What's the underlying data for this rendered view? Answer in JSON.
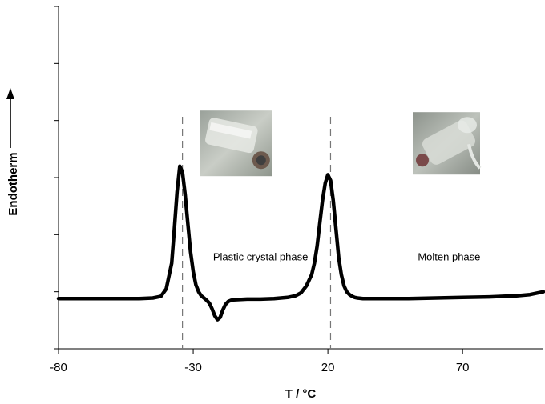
{
  "chart_data": {
    "type": "line",
    "title": "",
    "xlabel": "T / °C",
    "ylabel": "Endotherm",
    "xlim": [
      -80,
      100
    ],
    "ylim": [
      0,
      6
    ],
    "x_ticks": [
      -80,
      -30,
      20,
      70
    ],
    "x_tick_labels": [
      "-80",
      "-30",
      "20",
      "70"
    ],
    "y_ticks": [
      0,
      1,
      2,
      3,
      4,
      5,
      6
    ],
    "grid": false,
    "legend": "none",
    "series": [
      {
        "x": [
          -80,
          -60,
          -50,
          -45,
          -42,
          -40,
          -38,
          -37,
          -36,
          -35,
          -34,
          -33,
          -32,
          -31,
          -30,
          -29,
          -28,
          -27,
          -26,
          -25,
          -24,
          -23,
          -22,
          -21,
          -20,
          -19,
          -18,
          -17,
          -16,
          -15,
          -10,
          -5,
          0,
          5,
          8,
          10,
          12,
          14,
          15,
          16,
          17,
          18,
          19,
          20,
          21,
          22,
          23,
          24,
          25,
          26,
          27,
          28,
          29,
          30,
          31,
          33,
          36,
          40,
          50,
          60,
          70,
          80,
          90,
          95,
          100
        ],
        "values": [
          0.88,
          0.88,
          0.88,
          0.89,
          0.92,
          1.05,
          1.5,
          2.1,
          2.75,
          3.2,
          3.1,
          2.7,
          2.2,
          1.7,
          1.35,
          1.12,
          1.0,
          0.93,
          0.89,
          0.85,
          0.8,
          0.7,
          0.58,
          0.51,
          0.55,
          0.68,
          0.78,
          0.83,
          0.85,
          0.86,
          0.87,
          0.87,
          0.88,
          0.9,
          0.93,
          0.98,
          1.1,
          1.3,
          1.5,
          1.8,
          2.2,
          2.6,
          2.9,
          3.05,
          2.95,
          2.6,
          2.1,
          1.6,
          1.3,
          1.1,
          1.0,
          0.95,
          0.92,
          0.9,
          0.89,
          0.88,
          0.88,
          0.88,
          0.88,
          0.89,
          0.9,
          0.91,
          0.93,
          0.95,
          1.0
        ],
        "color": "#000000"
      }
    ],
    "reference_lines_x": [
      -34,
      21
    ],
    "annotations": [
      {
        "text": "Plastic crystal phase",
        "x": -5,
        "y": 1.55
      },
      {
        "text": "Molten phase",
        "x": 65,
        "y": 1.55
      }
    ],
    "images": [
      {
        "name": "plastic-crystal-photo",
        "x": -14,
        "y": 3.6
      },
      {
        "name": "molten-photo",
        "x": 64,
        "y": 3.6
      }
    ]
  }
}
